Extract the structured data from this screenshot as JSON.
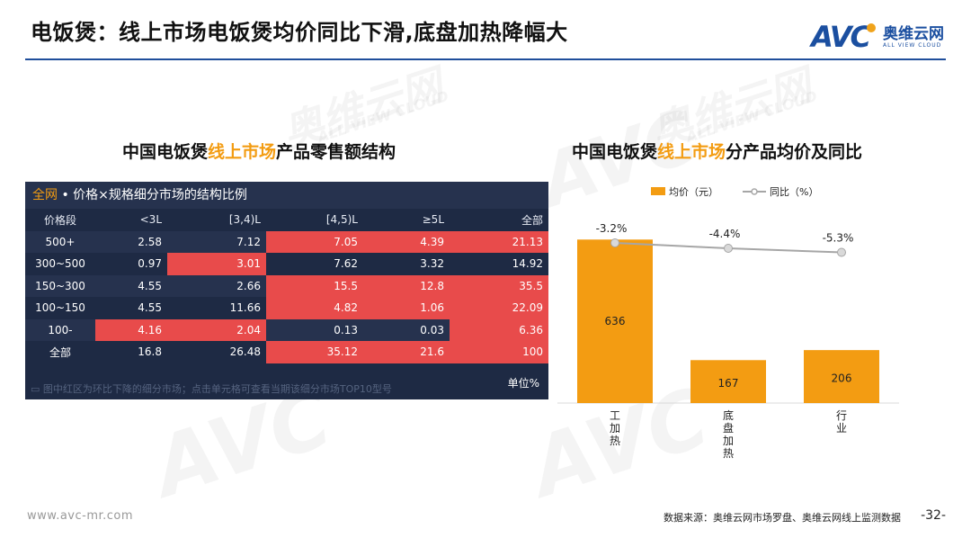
{
  "page": {
    "title": "电饭煲：线上市场电饭煲均价同比下滑,底盘加热降幅大",
    "logo": {
      "en": "AVC",
      "cn": "奥维云网",
      "sub": "ALL VIEW CLOUD"
    },
    "watermark": {
      "cn": "奥维云网",
      "en": "ALL VIEW CLOUD",
      "mark": "AVC"
    },
    "footer_url": "www.avc-mr.com",
    "footer_source": "数据来源：奥维云网市场罗盘、奥维云网线上监测数据",
    "page_number": "-32-"
  },
  "left": {
    "title_pre": "中国电饭煲",
    "title_hl": "线上市场",
    "title_post": "产品零售额结构",
    "table": {
      "caption_tag": "全网",
      "caption_text": " • 价格×规格细分市场的结构比例",
      "columns": [
        "价格段",
        "<3L",
        "[3,4)L",
        "[4,5)L",
        "≥5L",
        "全部"
      ],
      "rows": [
        [
          "500+",
          "2.58",
          "7.12",
          "7.05",
          "4.39",
          "21.13"
        ],
        [
          "300~500",
          "0.97",
          "3.01",
          "7.62",
          "3.32",
          "14.92"
        ],
        [
          "150~300",
          "4.55",
          "2.66",
          "15.5",
          "12.8",
          "35.5"
        ],
        [
          "100~150",
          "4.55",
          "11.66",
          "4.82",
          "1.06",
          "22.09"
        ],
        [
          "100-",
          "4.16",
          "2.04",
          "0.13",
          "0.03",
          "6.36"
        ],
        [
          "全部",
          "16.8",
          "26.48",
          "35.12",
          "21.6",
          "100"
        ]
      ],
      "highlight_color": "#e84b4b",
      "highlights": [
        [
          0,
          3
        ],
        [
          0,
          4
        ],
        [
          0,
          5
        ],
        [
          1,
          2
        ],
        [
          2,
          3
        ],
        [
          2,
          4
        ],
        [
          2,
          5
        ],
        [
          3,
          3
        ],
        [
          3,
          4
        ],
        [
          3,
          5
        ],
        [
          4,
          1
        ],
        [
          4,
          2
        ],
        [
          4,
          5
        ],
        [
          5,
          3
        ],
        [
          5,
          4
        ],
        [
          5,
          5
        ]
      ],
      "note": "图中红区为环比下降的细分市场；点击单元格可查看当期该细分市场TOP10型号",
      "unit": "单位%"
    }
  },
  "chart_data": {
    "type": "bar",
    "title_pre": "中国电饭煲",
    "title_hl": "线上市场",
    "title_post": "分产品均价及同比",
    "categories": [
      "IH加热",
      "底盘加热",
      "行业"
    ],
    "category_labels": [
      "工\n加\n热",
      "底\n盘\n加\n热",
      "行\n业"
    ],
    "series": [
      {
        "name": "均价（元）",
        "type": "bar",
        "values": [
          636,
          167,
          206
        ],
        "color": "#f39c12"
      },
      {
        "name": "同比（%）",
        "type": "line",
        "values": [
          -3.2,
          -4.4,
          -5.3
        ],
        "labels": [
          "-3.2%",
          "-4.4%",
          "-5.3%"
        ],
        "color": "#a6a6a6"
      }
    ],
    "bar_ylim": [
      0,
      700
    ],
    "line_ylim": [
      -40,
      0
    ],
    "legend": "top"
  }
}
